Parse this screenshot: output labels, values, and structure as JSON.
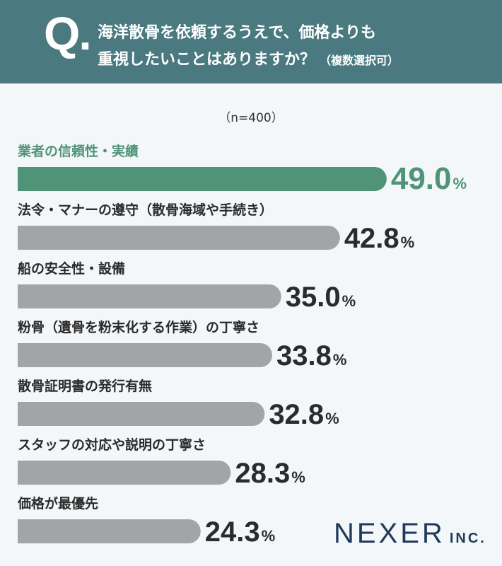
{
  "question": {
    "mark": "Q.",
    "line1": "海洋散骨を依頼するうえで、価格よりも",
    "line2": "重視したいことはありますか？",
    "note": "（複数選択可）"
  },
  "sample": "（n=400）",
  "logo": {
    "main": "NEXER",
    "sub": "INC."
  },
  "colors": {
    "header": "#4a7a80",
    "top_bar": "#4f9477",
    "bar": "#a3a4a8",
    "top_value": "#4f9477",
    "value": "#2b2b2b"
  },
  "chart_data": {
    "type": "bar",
    "orientation": "horizontal",
    "unit": "%",
    "categories": [
      "業者の信頼性・実績",
      "法令・マナーの遵守（散骨海域や手続き）",
      "船の安全性・設備",
      "粉骨（遺骨を粉末化する作業）の丁寧さ",
      "散骨証明書の発行有無",
      "スタッフの対応や説明の丁寧さ",
      "価格が最優先"
    ],
    "values": [
      49.0,
      42.8,
      35.0,
      33.8,
      32.8,
      28.3,
      24.3
    ],
    "highlight_index": 0
  }
}
